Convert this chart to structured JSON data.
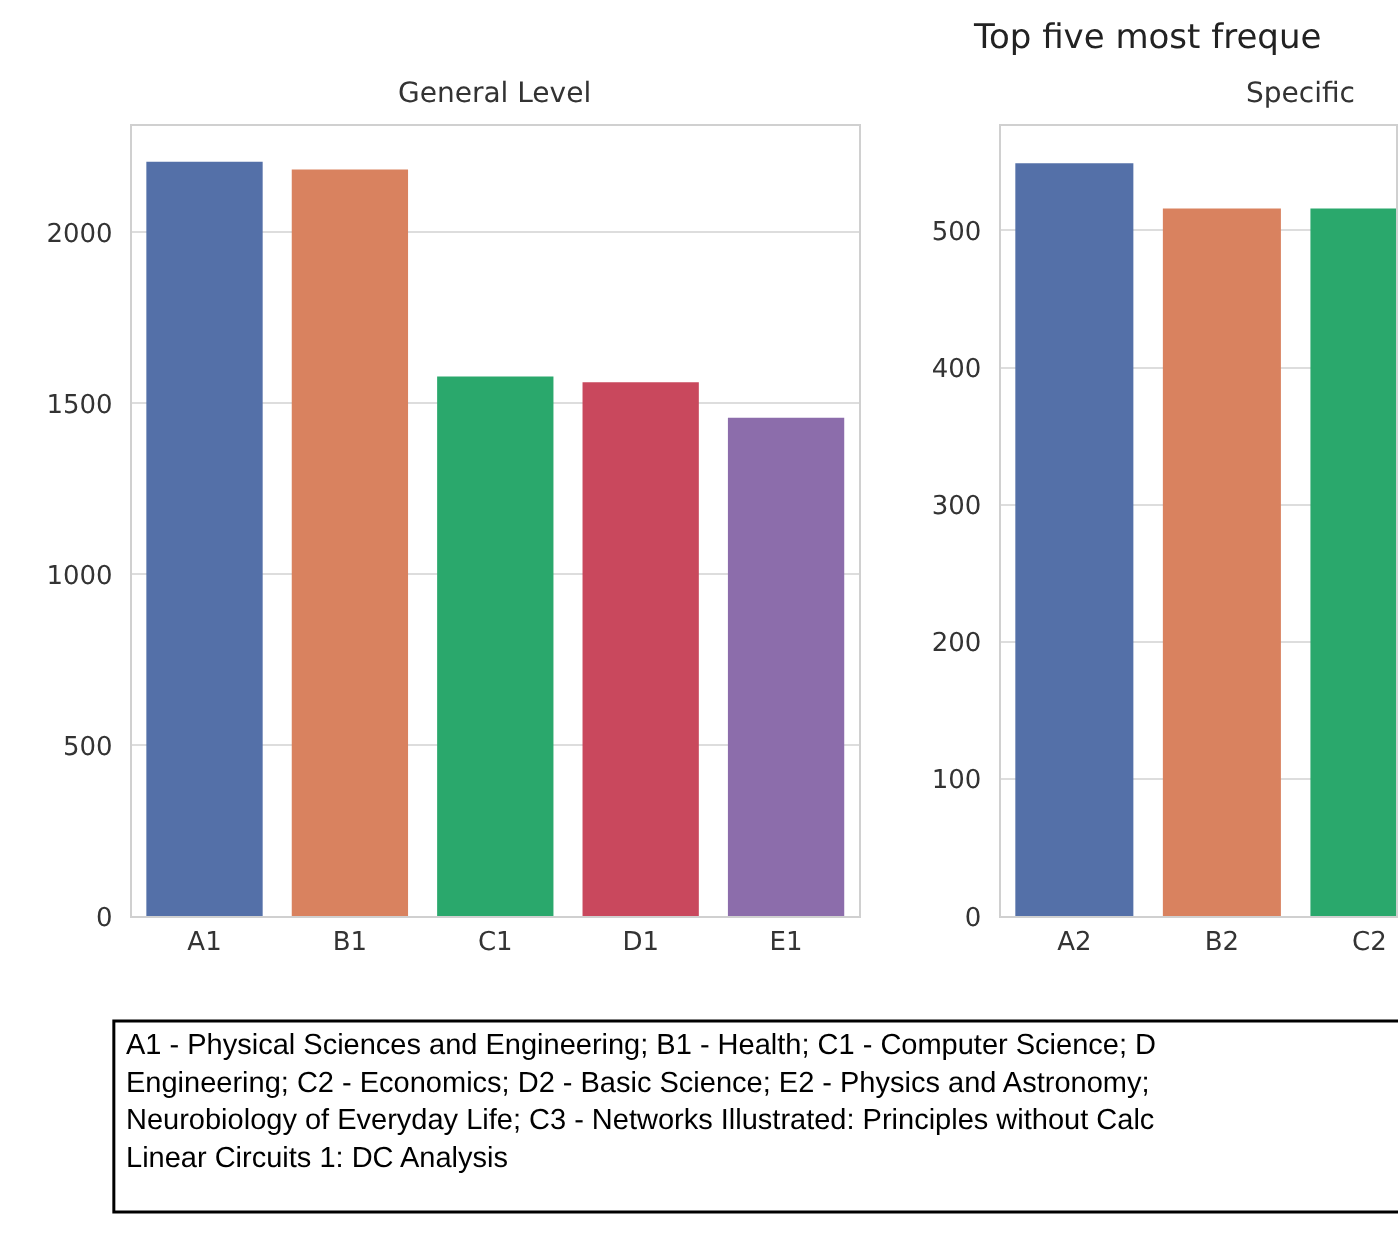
{
  "chart_data": [
    {
      "type": "bar",
      "title": "General Level",
      "categories": [
        "A1",
        "B1",
        "C1",
        "D1",
        "E1"
      ],
      "values": [
        2207,
        2184,
        1579,
        1562,
        1458
      ],
      "colors": [
        "#5470a8",
        "#d9825f",
        "#2aa86c",
        "#c9485d",
        "#8c6dab"
      ],
      "ylim": [
        0,
        2311
      ],
      "yticks": [
        0,
        500,
        1000,
        1500,
        2000
      ],
      "grid": "y",
      "annotations": [
        "A1 - Physical Sciences and Engineering; B1 - Health; C1 - Computer Science; D",
        "Engineering; C2 - Economics; D2 - Basic Science; E2 - Physics and Astronomy;",
        "Neurobiology of Everyday Life; C3 - Networks Illustrated: Principles without Calc",
        "Linear Circuits 1: DC Analysis"
      ]
    },
    {
      "type": "bar",
      "title": "Top five most freque",
      "subtitle": "Specific",
      "categories": [
        "A2",
        "B2",
        "C2"
      ],
      "values": [
        549,
        516,
        516
      ],
      "colors": [
        "#5470a8",
        "#d9825f",
        "#2aa86c"
      ],
      "ylim": [
        0,
        576
      ],
      "yticks": [
        0,
        100,
        200,
        300,
        400,
        500
      ],
      "grid": "y"
    }
  ]
}
